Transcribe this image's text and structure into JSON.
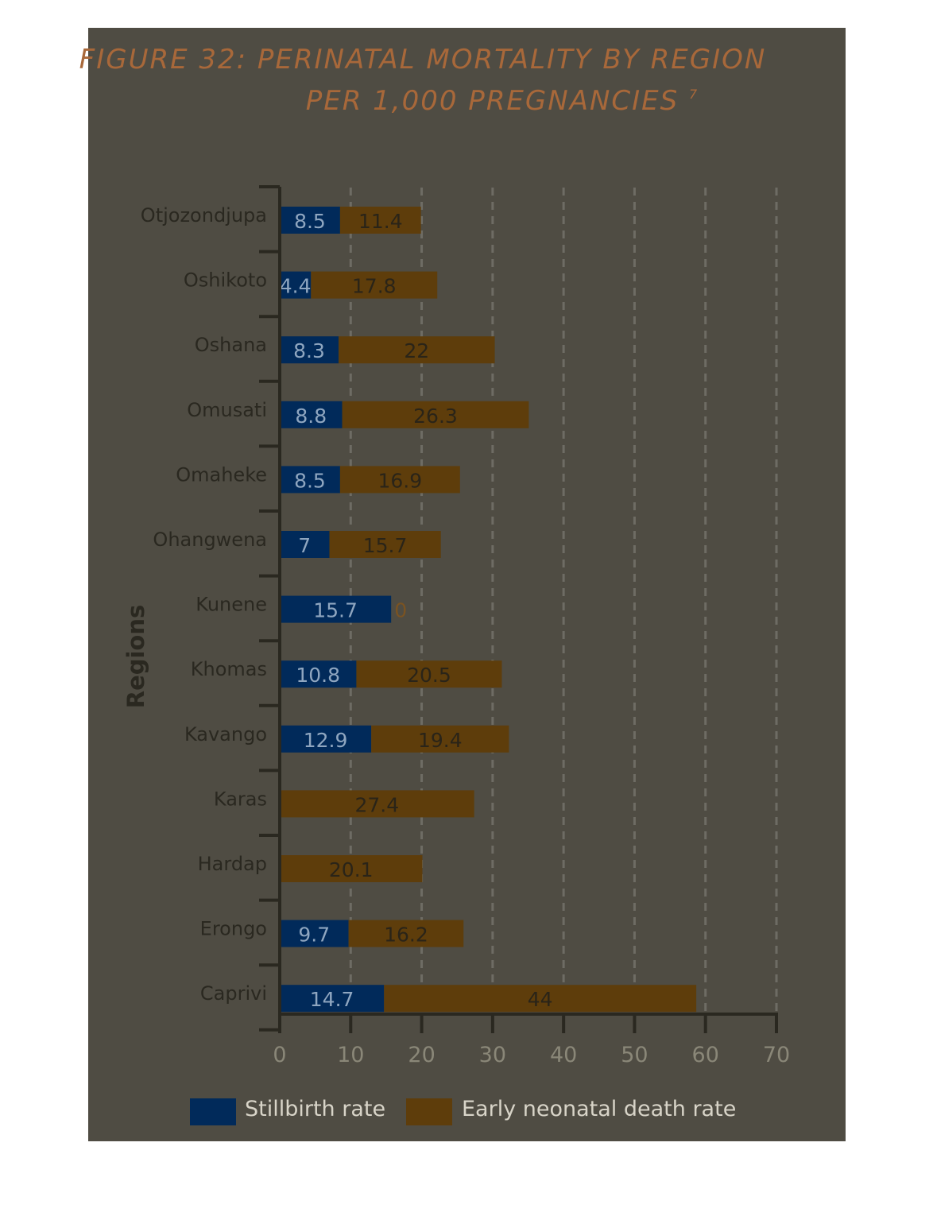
{
  "title_line1": "FIGURE 32: PERINATAL MORTALITY BY REGION",
  "title_line2": "PER 1,000 PREGNANCIES",
  "title_footnote": "7",
  "colors": {
    "stillbirth": "#012a5a",
    "neonatal": "#5e3d0b",
    "panel": "#4f4c43",
    "title": "#a8683a"
  },
  "chart_data": {
    "type": "bar",
    "orientation": "horizontal",
    "stacked": true,
    "ylabel": "Regions",
    "xlim": [
      0,
      70
    ],
    "xticks": [
      0,
      10,
      20,
      30,
      40,
      50,
      60,
      70
    ],
    "grid": "vertical dashed",
    "legend_position": "bottom",
    "categories": [
      "Otjozondjupa",
      "Oshikoto",
      "Oshana",
      "Omusati",
      "Omaheke",
      "Ohangwena",
      "Kunene",
      "Khomas",
      "Kavango",
      "Karas",
      "Hardap",
      "Erongo",
      "Caprivi"
    ],
    "series": [
      {
        "name": "Stillbirth rate",
        "values": [
          8.5,
          4.4,
          8.3,
          8.8,
          8.5,
          7,
          15.7,
          10.8,
          12.9,
          0,
          0,
          9.7,
          14.7
        ]
      },
      {
        "name": "Early neonatal death rate",
        "values": [
          11.4,
          17.8,
          22,
          26.3,
          16.9,
          15.7,
          0,
          20.5,
          19.4,
          27.4,
          20.1,
          16.2,
          44
        ]
      }
    ]
  }
}
